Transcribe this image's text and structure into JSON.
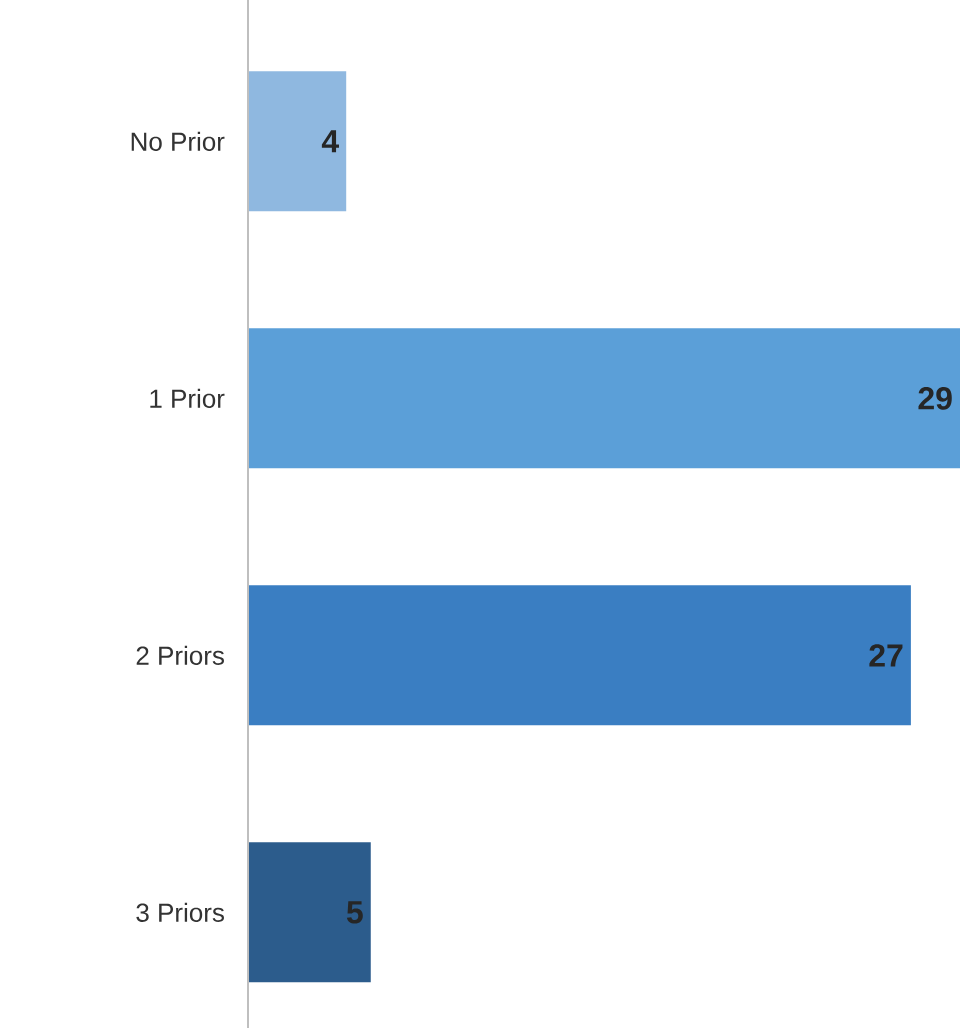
{
  "chart_data": {
    "type": "bar",
    "orientation": "horizontal",
    "categories": [
      "No Prior",
      "1 Prior",
      "2 Priors",
      "3 Priors"
    ],
    "values": [
      4,
      29,
      27,
      5
    ],
    "colors": [
      "#8fb8e0",
      "#5b9fd8",
      "#3a7ec2",
      "#2c5c8c"
    ],
    "data_labels": true
  }
}
